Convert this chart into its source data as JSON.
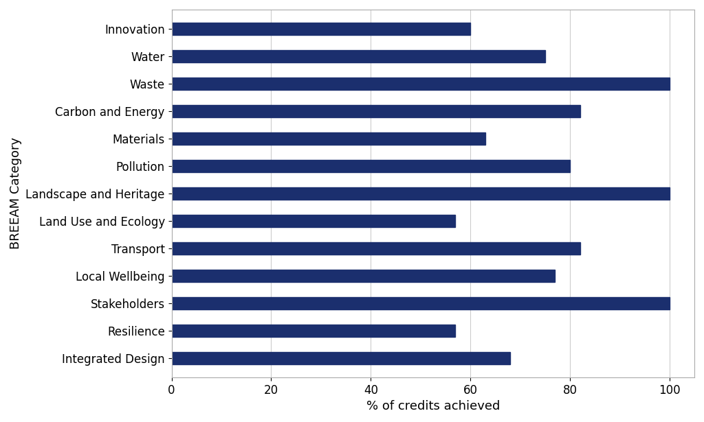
{
  "categories": [
    "Integrated Design",
    "Resilience",
    "Stakeholders",
    "Local Wellbeing",
    "Transport",
    "Land Use and Ecology",
    "Landscape and Heritage",
    "Pollution",
    "Materials",
    "Carbon and Energy",
    "Waste",
    "Water",
    "Innovation"
  ],
  "values": [
    68,
    57,
    100,
    77,
    82,
    57,
    100,
    80,
    63,
    82,
    100,
    75,
    60
  ],
  "bar_color": "#1b2f6e",
  "xlabel": "% of credits achieved",
  "ylabel": "BREEAM Category",
  "xlim": [
    0,
    105
  ],
  "xticks": [
    0,
    20,
    40,
    60,
    80,
    100
  ],
  "bar_height": 0.45,
  "background_color": "#ffffff",
  "grid_color": "#cccccc",
  "label_fontsize": 13,
  "tick_fontsize": 12,
  "ylabel_fontsize": 13,
  "xlabel_fontsize": 13
}
